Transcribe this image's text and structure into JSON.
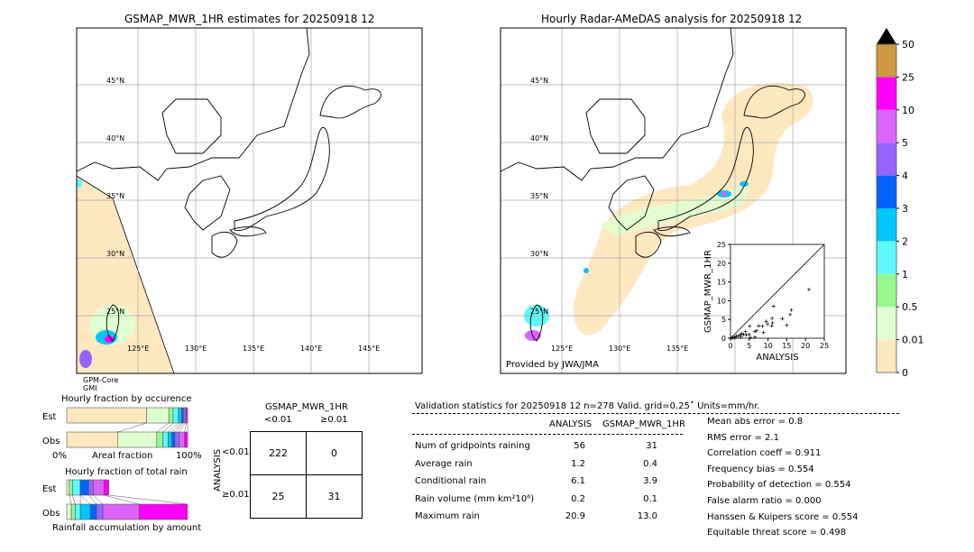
{
  "left_map": {
    "title": "GSMAP_MWR_1HR estimates for 20250918 12",
    "sensor_label_1": "GPM-Core",
    "sensor_label_2": "GMI"
  },
  "right_map": {
    "title": "Hourly Radar-AMeDAS analysis for 20250918 12",
    "credit": "Provided by JWA/JMA"
  },
  "map_axes": {
    "lat_labels": [
      "45°N",
      "40°N",
      "35°N",
      "30°N",
      "25°N"
    ],
    "lat_values": [
      45,
      40,
      35,
      30,
      25
    ],
    "lon_labels": [
      "125°E",
      "130°E",
      "135°E",
      "140°E",
      "145°E"
    ],
    "lon_values": [
      125,
      130,
      135,
      140,
      145
    ]
  },
  "colorbar": {
    "ticks": [
      "0",
      "0.01",
      "0.5",
      "1",
      "2",
      "3",
      "4",
      "5",
      "10",
      "25",
      "50"
    ],
    "colors": [
      "#fee8c0",
      "#e0ffd0",
      "#98f890",
      "#5cf8fc",
      "#00c8fc",
      "#0064fc",
      "#9664fc",
      "#dc64fc",
      "#fc00fc",
      "#d09840"
    ],
    "extend_color": "#000000"
  },
  "chart_data": [
    {
      "type": "scatter",
      "xlabel": "ANALYSIS",
      "ylabel": "GSMAP_MWR_1HR",
      "xlim": [
        0,
        25
      ],
      "ylim": [
        0,
        25
      ],
      "xticks": [
        "0",
        "5",
        "10",
        "15",
        "20",
        "25"
      ],
      "yticks": [
        "0",
        "5",
        "10",
        "15",
        "20",
        "25"
      ],
      "diagonal_line": true,
      "points": [
        [
          20.9,
          13.0
        ],
        [
          16.2,
          7.5
        ],
        [
          15.9,
          6.3
        ],
        [
          15.0,
          3.5
        ],
        [
          13.8,
          5.2
        ],
        [
          11.5,
          8.5
        ],
        [
          11.1,
          5.3
        ],
        [
          11.2,
          4.1
        ],
        [
          11.0,
          3.3
        ],
        [
          9.5,
          4.5
        ],
        [
          9.9,
          3.8
        ],
        [
          8.5,
          3.2
        ],
        [
          7.5,
          3.3
        ],
        [
          8.8,
          1.5
        ],
        [
          7.0,
          2.0
        ],
        [
          6.5,
          1.8
        ],
        [
          5.1,
          3.2
        ],
        [
          5.0,
          1.0
        ],
        [
          4.0,
          1.8
        ],
        [
          6.5,
          0.3
        ],
        [
          4.2,
          0.9
        ],
        [
          3.5,
          1.0
        ],
        [
          3.0,
          1.2
        ],
        [
          2.5,
          0.9
        ],
        [
          2.0,
          0.5
        ],
        [
          1.6,
          0.6
        ],
        [
          1.2,
          0.3
        ],
        [
          1.0,
          0.1
        ],
        [
          0.6,
          0.2
        ],
        [
          0.3,
          0.1
        ],
        [
          5.3,
          0.2
        ],
        [
          2.8,
          0.4
        ]
      ]
    },
    {
      "type": "bar",
      "title": "Hourly fraction by occurence",
      "xlabel": "Areal fraction",
      "x_left_label": "0%",
      "x_right_label": "100%",
      "categories": [
        "Est",
        "Obs"
      ],
      "stacked": true,
      "series": [
        {
          "values": [
            0.66,
            0.42
          ]
        },
        {
          "values": [
            0.185,
            0.325
          ]
        },
        {
          "values": [
            0.035,
            0.05
          ]
        },
        {
          "values": [
            0.045,
            0.045
          ]
        },
        {
          "values": [
            0.025,
            0.03
          ]
        },
        {
          "values": [
            0.015,
            0.025
          ]
        },
        {
          "values": [
            0.015,
            0.035
          ]
        },
        {
          "values": [
            0.01,
            0.045
          ]
        },
        {
          "values": [
            0.01,
            0.025
          ]
        }
      ]
    },
    {
      "type": "bar",
      "title": "Hourly fraction of total rain",
      "xlabel": "Rainfall accumulation by amount",
      "categories": [
        "Est",
        "Obs"
      ],
      "stacked": true,
      "series": [
        {
          "values": [
            0.022,
            0.038
          ]
        },
        {
          "values": [
            0.025,
            0.032
          ]
        },
        {
          "values": [
            0.065,
            0.043
          ]
        },
        {
          "values": [
            0.0,
            0.082
          ]
        },
        {
          "values": [
            0.07,
            0.052
          ]
        },
        {
          "values": [
            0.038,
            0.052
          ]
        },
        {
          "values": [
            0.088,
            0.3
          ]
        },
        {
          "values": [
            0.04,
            0.4
          ]
        }
      ]
    }
  ],
  "contingency": {
    "col_title": "GSMAP_MWR_1HR",
    "col_labels": [
      "<0.01",
      "≥0.01"
    ],
    "row_title": "ANALYSIS",
    "row_labels": [
      "<0.01",
      "≥0.01"
    ],
    "cells": [
      [
        "222",
        "0"
      ],
      [
        "25",
        "31"
      ]
    ]
  },
  "stats": {
    "title": "Validation statistics for 20250918 12  n=278 Valid. grid=0.25˚ Units=mm/hr.",
    "col_headers": [
      "ANALYSIS",
      "GSMAP_MWR_1HR"
    ],
    "rows": [
      {
        "label": "Num of gridpoints raining",
        "analysis": "56",
        "gsmap": "31"
      },
      {
        "label": "Average rain",
        "analysis": "1.2",
        "gsmap": "0.4"
      },
      {
        "label": "Conditional rain",
        "analysis": "6.1",
        "gsmap": "3.9"
      },
      {
        "label": "Rain volume (mm km²10⁶)",
        "analysis": "0.2",
        "gsmap": "0.1"
      },
      {
        "label": "Maximum rain",
        "analysis": "20.9",
        "gsmap": "13.0"
      }
    ],
    "scores": [
      "Mean abs error =    0.8",
      "RMS error =    2.1",
      "Correlation coeff =  0.911",
      "Frequency bias =  0.554",
      "Probability of detection =  0.554",
      "False alarm ratio =  0.000",
      "Hanssen & Kuipers score =  0.554",
      "Equitable threat score =  0.498"
    ]
  }
}
